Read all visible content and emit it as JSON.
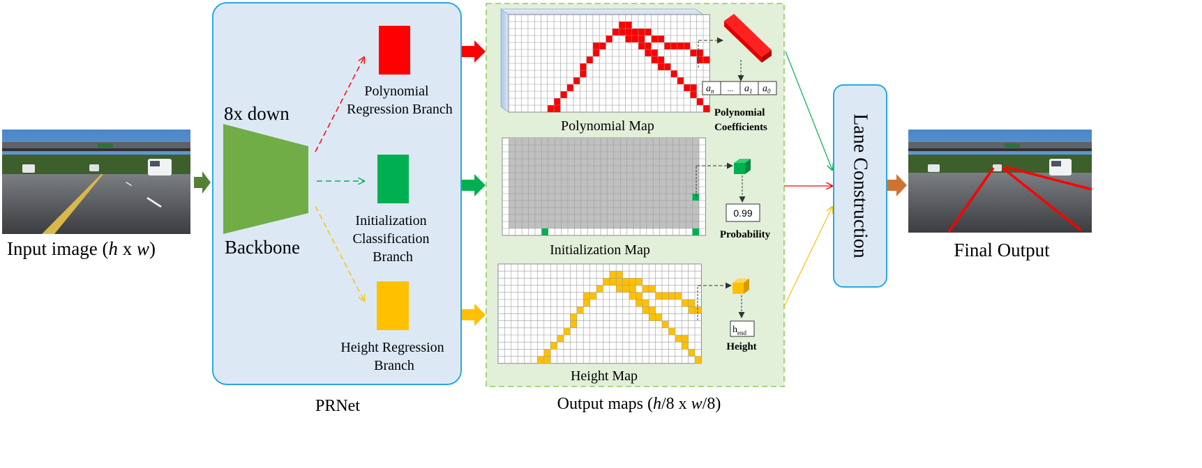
{
  "input": {
    "label_prefix": "Input image (",
    "h": "h",
    "x": " x ",
    "w": "w",
    "label_suffix": ")"
  },
  "prnet": {
    "label": "PRNet",
    "down_label": "8x down",
    "backbone_label": "Backbone",
    "branches": [
      {
        "lines": [
          "Polynomial",
          "Regression Branch"
        ]
      },
      {
        "lines": [
          "Initialization",
          "Classification",
          "Branch"
        ]
      },
      {
        "lines": [
          "Height Regression",
          "Branch"
        ]
      }
    ]
  },
  "output_maps": {
    "label_prefix": "Output maps (",
    "h": "h",
    "div_x": "/8 x ",
    "w": "w",
    "label_suffix": "/8)",
    "maps": [
      {
        "label": "Polynomial Map"
      },
      {
        "label": "Initialization Map"
      },
      {
        "label": "Height Map"
      }
    ]
  },
  "coefficients": {
    "cells": [
      {
        "base": "a",
        "sub": "n"
      },
      {
        "base": "...",
        "sub": ""
      },
      {
        "base": "a",
        "sub": "1"
      },
      {
        "base": "a",
        "sub": "0"
      }
    ],
    "label_lines": [
      "Polynomial",
      "Coefficients"
    ]
  },
  "probability": {
    "value": "0.99",
    "label": "Probability"
  },
  "height": {
    "base": "h",
    "sub": "end",
    "label": "Height"
  },
  "lane_construction": {
    "label": "Lane Construction"
  },
  "final_output": {
    "label": "Final Output"
  },
  "colors": {
    "red": "#ff0000",
    "green": "#00b050",
    "yellow": "#ffc000",
    "dark_green": "#548235",
    "orange": "#d07330",
    "backbone": "#70ad47",
    "panel_fill": "#dce9f5",
    "panel_border": "#29a8e0",
    "maps_fill": "#e2efd9",
    "maps_border": "#8fce5f"
  }
}
